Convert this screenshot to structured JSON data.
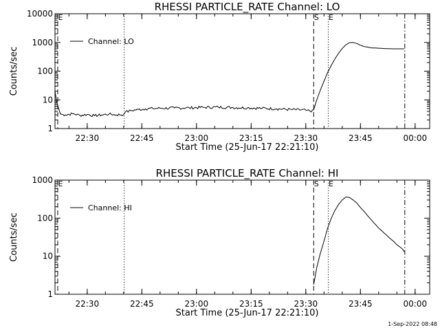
{
  "chart_data": [
    {
      "type": "line",
      "title": "RHESSI PARTICLE_RATE Channel: LO",
      "ylabel": "Counts/sec",
      "xlabel": "Start Time (25-Jun-17 22:21:10)",
      "y_scale": "log",
      "ylim": [
        1,
        10000
      ],
      "xlim": [
        "22:21:10",
        "00:04:00"
      ],
      "y_ticks": [
        "1",
        "10",
        "100",
        "1000",
        "10000"
      ],
      "x_ticks": [
        "22:30",
        "22:45",
        "23:00",
        "23:15",
        "23:30",
        "23:45",
        "00:00"
      ],
      "legend": {
        "label": "Channel: LO",
        "placement": "top-left"
      },
      "markers": [
        {
          "time": "22:21:55",
          "style": "dashed",
          "letter": "E"
        },
        {
          "time": "22:40:10",
          "style": "dotted",
          "letter": ""
        },
        {
          "time": "23:32:10",
          "style": "dashed",
          "letter": "S"
        },
        {
          "time": "23:36:10",
          "style": "dotted",
          "letter": "E"
        },
        {
          "time": "23:57:10",
          "style": "dashdot",
          "letter": ""
        }
      ],
      "series": [
        {
          "name": "Channel: LO",
          "x": [
            "22:21:10",
            "22:21:40",
            "22:22:10",
            "22:22:40",
            "22:24",
            "22:26",
            "22:28",
            "22:30",
            "22:32",
            "22:34",
            "22:36",
            "22:38",
            "22:40",
            "22:40:30",
            "22:42",
            "22:44",
            "22:46",
            "22:48",
            "22:50",
            "22:54",
            "22:58",
            "23:02",
            "23:06",
            "23:10",
            "23:14",
            "23:18",
            "23:22",
            "23:26",
            "23:30",
            "23:31:30",
            "23:32:10",
            "23:33",
            "23:34",
            "23:35",
            "23:36",
            "23:37",
            "23:38",
            "23:39",
            "23:40",
            "23:41",
            "23:42",
            "23:43",
            "23:44",
            "23:45",
            "23:46",
            "23:48",
            "23:50",
            "23:52",
            "23:54",
            "23:56",
            "23:57"
          ],
          "y": [
            20,
            8,
            5,
            3.2,
            3.0,
            3.3,
            2.9,
            3.1,
            2.8,
            3.0,
            3.2,
            3.0,
            3.1,
            3.8,
            4.2,
            4.6,
            4.9,
            5.0,
            5.1,
            5.2,
            5.3,
            5.5,
            5.6,
            5.4,
            5.3,
            5.1,
            4.9,
            4.6,
            4.4,
            3.8,
            4.5,
            10,
            22,
            45,
            90,
            160,
            270,
            420,
            620,
            830,
            980,
            1000,
            920,
            800,
            720,
            650,
            630,
            610,
            600,
            600,
            600
          ]
        }
      ]
    },
    {
      "type": "line",
      "title": "RHESSI PARTICLE_RATE Channel: HI",
      "ylabel": "Counts/sec",
      "xlabel": "Start Time (25-Jun-17 22:21:10)",
      "y_scale": "log",
      "ylim": [
        1,
        1000
      ],
      "xlim": [
        "22:21:10",
        "00:04:00"
      ],
      "y_ticks": [
        "1",
        "10",
        "100",
        "1000"
      ],
      "x_ticks": [
        "22:30",
        "22:45",
        "23:00",
        "23:15",
        "23:30",
        "23:45",
        "00:00"
      ],
      "legend": {
        "label": "Channel: HI",
        "placement": "top-left"
      },
      "markers": [
        {
          "time": "22:21:55",
          "style": "dashed",
          "letter": "E"
        },
        {
          "time": "22:40:10",
          "style": "dotted",
          "letter": ""
        },
        {
          "time": "23:32:10",
          "style": "dashed",
          "letter": "S"
        },
        {
          "time": "23:36:10",
          "style": "dotted",
          "letter": "E"
        },
        {
          "time": "23:57:10",
          "style": "dashdot",
          "letter": ""
        }
      ],
      "series": [
        {
          "name": "Channel: HI",
          "x": [
            "23:32:10",
            "23:33",
            "23:34",
            "23:35",
            "23:36",
            "23:37",
            "23:38",
            "23:39",
            "23:40",
            "23:41",
            "23:42",
            "23:43",
            "23:44",
            "23:45",
            "23:46",
            "23:47",
            "23:48",
            "23:49",
            "23:50",
            "23:51",
            "23:52",
            "23:53",
            "23:54",
            "23:55",
            "23:56",
            "23:56:40",
            "23:57"
          ],
          "y": [
            1.8,
            5,
            12,
            25,
            55,
            100,
            160,
            230,
            300,
            360,
            350,
            300,
            250,
            190,
            150,
            115,
            90,
            70,
            55,
            45,
            37,
            30,
            25,
            20,
            17,
            15,
            13
          ]
        }
      ]
    }
  ],
  "footer": {
    "timestamp": "1-Sep-2022 08:48"
  }
}
